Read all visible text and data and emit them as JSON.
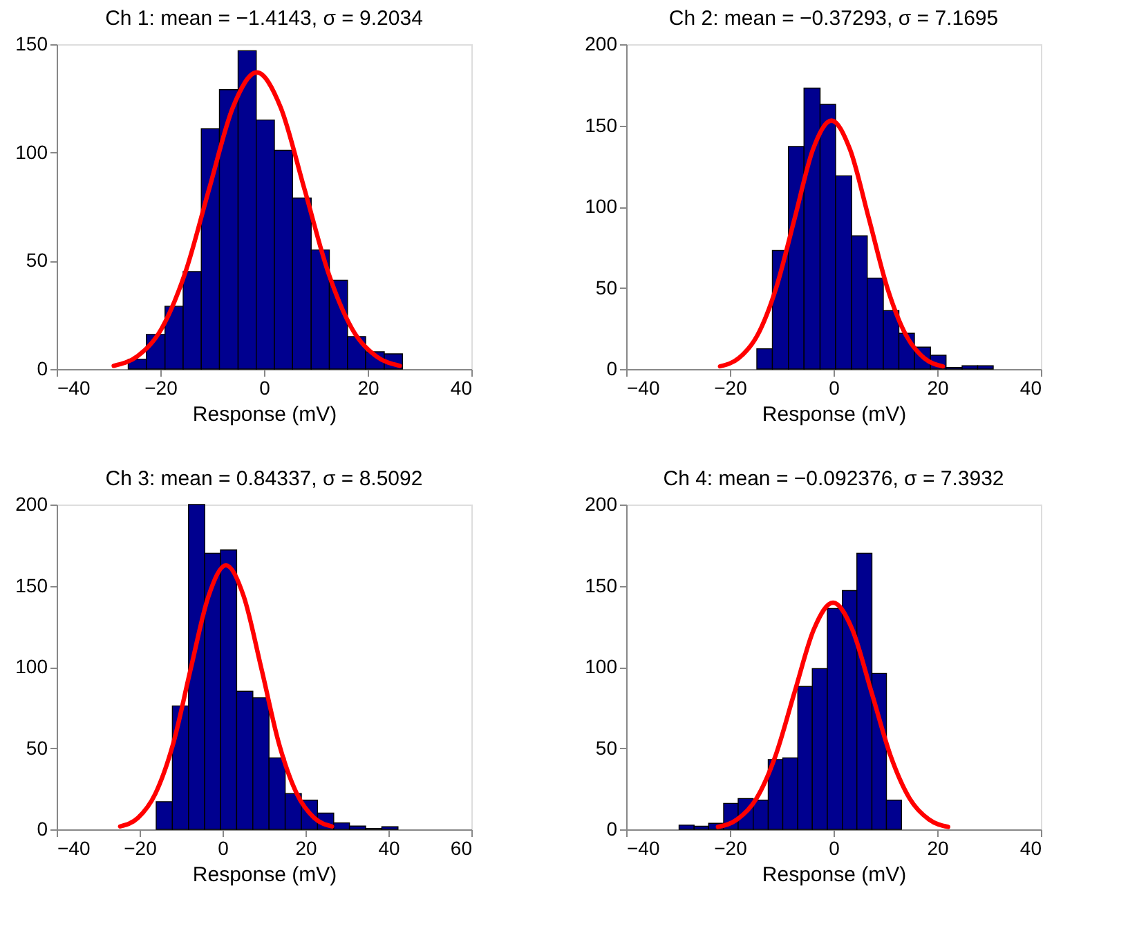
{
  "chart_data": [
    {
      "type": "histogram",
      "title": "Ch 1:  mean = −1.4143, σ = 9.2034",
      "xlabel": "Response (mV)",
      "color": "#00008f",
      "bins": [
        -26.2,
        -22.7,
        -19.1,
        -15.6,
        -12.1,
        -8.6,
        -5.0,
        -1.5,
        2.0,
        5.5,
        9.1,
        12.6,
        16.1,
        19.6,
        23.2,
        26.7
      ],
      "values": [
        4.6,
        16,
        29,
        45,
        111,
        129,
        147,
        115,
        101,
        79,
        55,
        41,
        15,
        8,
        7
      ],
      "series": [
        {
          "type": "line",
          "color": "#ff0000",
          "x": [
            -29.0,
            -24.4,
            -19.8,
            -15.2,
            -10.6,
            -6.0,
            -1.4,
            3.2,
            7.8,
            12.4,
            17.0,
            21.6,
            26.2
          ],
          "values": [
            1.5,
            6.0,
            18.5,
            44.5,
            83.1,
            120.9,
            137,
            120.9,
            83.1,
            44.5,
            18.5,
            6.0,
            1.5
          ]
        }
      ],
      "xlim": [
        -40,
        40
      ],
      "xticks": [
        -40,
        -20,
        0,
        20,
        40
      ],
      "ylim": [
        0,
        150
      ],
      "yticks": [
        0,
        50,
        100,
        150
      ],
      "grid": false
    },
    {
      "type": "histogram",
      "title": "Ch 2:  mean = −0.37293, σ = 7.1695",
      "xlabel": "Response (mV)",
      "color": "#00008f",
      "bins": [
        -14.8,
        -11.8,
        -8.7,
        -5.7,
        -2.6,
        0.4,
        3.5,
        6.5,
        9.6,
        12.6,
        15.6,
        18.7,
        21.7,
        24.8,
        27.8,
        30.8
      ],
      "values": [
        12.5,
        73,
        137,
        173,
        163,
        119,
        82,
        56,
        36,
        22,
        13.5,
        8.5,
        1,
        2,
        2
      ],
      "series": [
        {
          "type": "line",
          "color": "#ff0000",
          "x": [
            -21.9,
            -18.3,
            -14.7,
            -11.1,
            -7.5,
            -4.0,
            -0.4,
            3.2,
            6.8,
            10.4,
            14.0,
            17.5,
            21.1
          ],
          "values": [
            1.7,
            6.7,
            20.7,
            49.7,
            92.8,
            135.0,
            153,
            135.0,
            92.8,
            49.7,
            20.7,
            6.7,
            1.7
          ]
        }
      ],
      "xlim": [
        -40,
        40
      ],
      "xticks": [
        -40,
        -20,
        0,
        20,
        40
      ],
      "ylim": [
        0,
        200
      ],
      "yticks": [
        0,
        50,
        100,
        150,
        200
      ],
      "grid": false
    },
    {
      "type": "histogram",
      "title": "Ch 3:  mean = 0.84337, σ = 8.5092",
      "xlabel": "Response (mV)",
      "color": "#00008f",
      "bins": [
        -16.0,
        -12.1,
        -8.2,
        -4.3,
        -0.5,
        3.4,
        7.3,
        11.2,
        15.1,
        19.0,
        22.9,
        26.8,
        30.6,
        34.5,
        38.4,
        42.3
      ],
      "values": [
        17,
        76,
        200,
        170,
        172,
        85,
        81,
        44,
        22,
        18,
        10,
        4,
        2,
        0.5,
        1.6
      ],
      "series": [
        {
          "type": "line",
          "color": "#ff0000",
          "x": [
            -24.7,
            -20.4,
            -16.2,
            -11.9,
            -7.7,
            -3.4,
            0.8,
            5.1,
            9.4,
            13.6,
            17.9,
            22.1,
            26.4
          ],
          "values": [
            1.8,
            7.1,
            22.0,
            52.8,
            98.6,
            143.5,
            162.6,
            143.5,
            98.6,
            52.8,
            22.0,
            7.1,
            1.8
          ]
        }
      ],
      "xlim": [
        -40,
        60
      ],
      "xticks": [
        -40,
        -20,
        0,
        20,
        40,
        60
      ],
      "ylim": [
        0,
        200
      ],
      "yticks": [
        0,
        50,
        100,
        150,
        200
      ],
      "grid": false
    },
    {
      "type": "histogram",
      "title": "Ch 4:  mean = −0.092376, σ = 7.3932",
      "xlabel": "Response (mV)",
      "color": "#00008f",
      "bins": [
        -29.8,
        -26.9,
        -24.1,
        -21.2,
        -18.4,
        -15.5,
        -12.6,
        -9.8,
        -6.9,
        -4.1,
        -1.2,
        1.7,
        4.5,
        7.4,
        10.2,
        13.1
      ],
      "values": [
        2.6,
        1.9,
        3.7,
        16,
        19,
        18,
        43,
        44,
        88,
        99,
        136,
        147,
        170,
        96,
        18
      ],
      "series": [
        {
          "type": "line",
          "color": "#ff0000",
          "x": [
            -22.3,
            -18.6,
            -14.9,
            -11.2,
            -7.5,
            -3.8,
            -0.1,
            3.6,
            7.3,
            11.0,
            14.7,
            18.4,
            22.1
          ],
          "values": [
            1.5,
            6.1,
            18.9,
            45.3,
            84.7,
            123.2,
            139.6,
            123.2,
            84.7,
            45.3,
            18.9,
            6.1,
            1.5
          ]
        }
      ],
      "xlim": [
        -40,
        40
      ],
      "xticks": [
        -40,
        -20,
        0,
        20,
        40
      ],
      "ylim": [
        0,
        200
      ],
      "yticks": [
        0,
        50,
        100,
        150,
        200
      ],
      "grid": false
    }
  ]
}
